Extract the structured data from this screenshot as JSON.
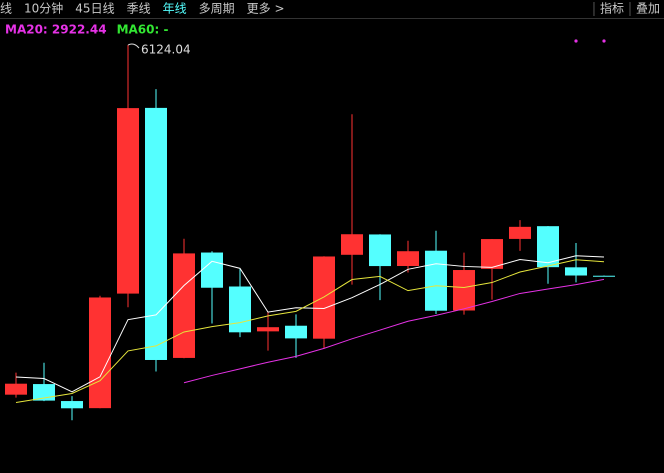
{
  "toolbar": {
    "left": [
      {
        "text": "线",
        "active": false
      },
      {
        "text": "10分钟",
        "active": false
      },
      {
        "text": "45日线",
        "active": false
      },
      {
        "text": "季线",
        "active": false
      },
      {
        "text": "年线",
        "active": true
      },
      {
        "text": "多周期",
        "active": false
      },
      {
        "text": "更多 >",
        "active": false
      }
    ],
    "right": [
      "指标",
      "叠加"
    ]
  },
  "chart_data": {
    "type": "candlestick",
    "up_color": "#ff3232",
    "down_color": "#54ffff",
    "ylim": [
      277,
      6739
    ],
    "open": [
      1347,
      1492,
      1260,
      1163,
      2728,
      5265,
      1849,
      3289,
      2825,
      2212,
      2289,
      2112,
      3258,
      3536,
      3105,
      3314,
      2497,
      3066,
      3475,
      3649,
      3087,
      2972
    ],
    "high": [
      1649,
      1783,
      1328,
      2698,
      6124.04,
      5522,
      3478,
      3306,
      3067,
      2478,
      2444,
      3239,
      5178,
      3539,
      3450,
      3587,
      3288,
      3474,
      3732,
      3651,
      3419,
      2976
    ],
    "low": [
      1307,
      1259,
      998,
      1162,
      2541,
      1664,
      1844,
      2319,
      2134,
      1949,
      1849,
      1974,
      2850,
      2638,
      3016,
      2449,
      2440,
      2646,
      3312,
      2863,
      2882,
      2962
    ],
    "close": [
      1497,
      1266,
      1161,
      2675,
      5262,
      1821,
      3277,
      2808,
      2199,
      2269,
      2116,
      3235,
      3539,
      3104,
      3307,
      2494,
      3050,
      3473,
      3640,
      3089,
      2975,
      2962
    ],
    "ma_lines": [
      {
        "color": "#ffffff",
        "values": [
          1588,
          1568,
          1386,
          1591,
          2372,
          2437,
          2839,
          3169,
          3073,
          2475,
          2534,
          2525,
          2672,
          2853,
          3060,
          3136,
          3099,
          3086,
          3193,
          3149,
          3245,
          3228
        ]
      },
      {
        "color": "#e6e63c",
        "values": [
          1240,
          1302,
          1363,
          1538,
          1945,
          2013,
          2204,
          2277,
          2332,
          2424,
          2485,
          2682,
          2920,
          2963,
          2768,
          2835,
          2812,
          2879,
          3023,
          3105,
          3191,
          3163
        ]
      },
      {
        "color": "#e632e6",
        "values": [
          null,
          null,
          null,
          null,
          null,
          null,
          1510,
          1610,
          1700,
          1790,
          1870,
          1980,
          2110,
          2230,
          2350,
          2430,
          2520,
          2620,
          2730,
          2790,
          2850,
          2922.44
        ]
      }
    ],
    "legend": [
      {
        "text": "MA20: 2922.44",
        "color": "#e632e6"
      },
      {
        "text": "MA60: -",
        "color": "#32e632"
      }
    ]
  }
}
